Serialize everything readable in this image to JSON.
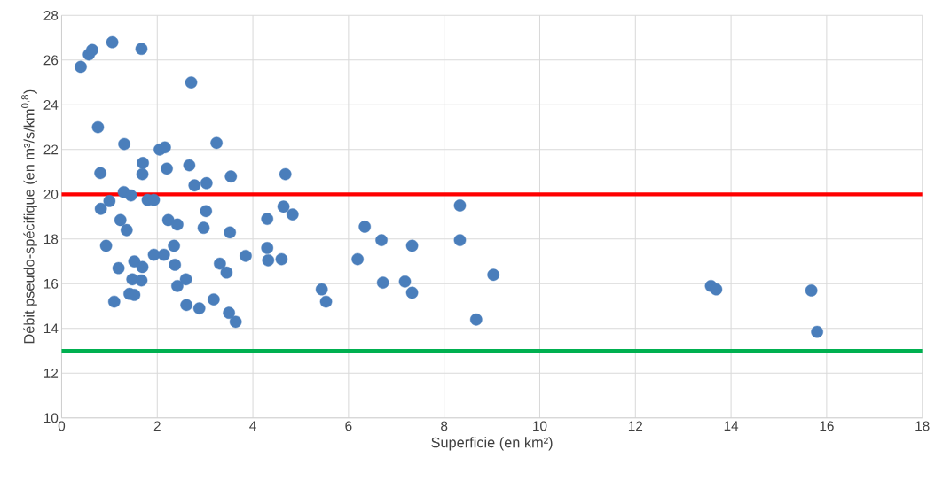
{
  "chart_data": {
    "type": "scatter",
    "xlabel": "Superficie (en km²)",
    "ylabel": "Débit pseudo-spécifique (en m³/s/km$^{0,8}$)",
    "x": [
      0.4,
      0.57,
      0.64,
      1.06,
      1.67,
      2.71,
      0.76,
      1.31,
      0.81,
      1.7,
      1.69,
      2.05,
      2.16,
      2.2,
      3.24,
      2.67,
      1.3,
      1.45,
      1.8,
      1.93,
      2.78,
      3.03,
      3.54,
      4.68,
      0.82,
      1.0,
      1.23,
      1.36,
      2.23,
      2.42,
      3.02,
      2.97,
      3.52,
      0.93,
      2.35,
      1.93,
      2.14,
      1.19,
      1.52,
      1.69,
      2.37,
      1.48,
      1.67,
      2.42,
      2.6,
      1.42,
      1.52,
      1.1,
      2.61,
      2.88,
      3.18,
      3.31,
      3.45,
      3.5,
      3.64,
      4.64,
      4.83,
      4.3,
      3.85,
      4.3,
      4.32,
      4.6,
      5.44,
      5.53,
      8.33,
      6.34,
      6.69,
      7.33,
      6.19,
      6.72,
      7.18,
      7.33,
      8.33,
      9.03,
      8.67,
      13.58,
      13.69,
      15.68,
      15.8
    ],
    "values": [
      25.7,
      26.25,
      26.45,
      26.8,
      26.5,
      25.0,
      23.0,
      22.25,
      20.95,
      21.4,
      20.9,
      22.0,
      22.1,
      21.15,
      22.3,
      21.3,
      20.1,
      19.95,
      19.75,
      19.75,
      20.4,
      20.5,
      20.8,
      20.9,
      19.35,
      19.7,
      18.85,
      18.4,
      18.85,
      18.65,
      19.25,
      18.5,
      18.3,
      17.7,
      17.7,
      17.3,
      17.3,
      16.7,
      17.0,
      16.75,
      16.85,
      16.2,
      16.15,
      15.9,
      16.2,
      15.55,
      15.5,
      15.2,
      15.05,
      14.9,
      15.3,
      16.9,
      16.5,
      14.7,
      14.3,
      19.45,
      19.1,
      18.9,
      17.25,
      17.6,
      17.05,
      17.1,
      15.75,
      15.2,
      19.5,
      18.55,
      17.95,
      17.7,
      17.1,
      16.05,
      16.1,
      15.6,
      17.95,
      16.4,
      14.4,
      15.9,
      15.75,
      15.7,
      13.85
    ],
    "color": "#4a7ebb",
    "marker": "circle",
    "xlim": [
      0,
      18
    ],
    "xticks": [
      0,
      2,
      4,
      6,
      8,
      10,
      12,
      14,
      16,
      18
    ],
    "ylim": [
      10,
      28
    ],
    "yticks": [
      10,
      12,
      14,
      16,
      18,
      20,
      22,
      24,
      26,
      28
    ],
    "grid": true,
    "ref_lines": [
      {
        "axis": "y",
        "value": 20,
        "color": "#ff0000"
      },
      {
        "axis": "y",
        "value": 13,
        "color": "#00b050"
      }
    ]
  }
}
